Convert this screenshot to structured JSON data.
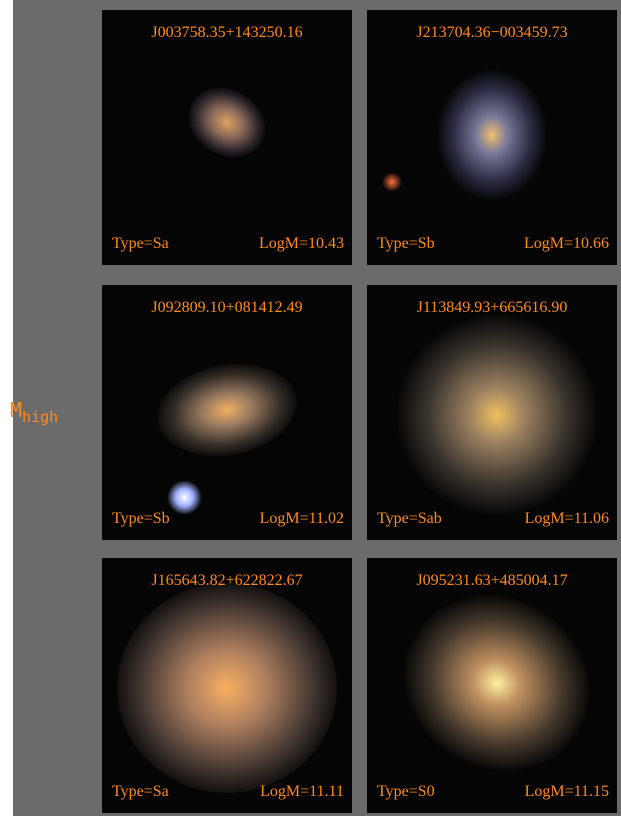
{
  "row_label": {
    "main": "M",
    "sub": "high"
  },
  "panels": [
    {
      "name": "J003758.35+143250.16",
      "type": "Type=Sa",
      "mass": "LogM=10.43"
    },
    {
      "name": "J213704.36−003459.73",
      "type": "Type=Sb",
      "mass": "LogM=10.66"
    },
    {
      "name": "J092809.10+081412.49",
      "type": "Type=Sb",
      "mass": "LogM=11.02"
    },
    {
      "name": "J113849.93+665616.90",
      "type": "Type=Sab",
      "mass": "LogM=11.06"
    },
    {
      "name": "J165643.82+622822.67",
      "type": "Type=Sa",
      "mass": "LogM=11.11"
    },
    {
      "name": "J095231.63+485004.17",
      "type": "Type=S0",
      "mass": "LogM=11.15"
    }
  ]
}
